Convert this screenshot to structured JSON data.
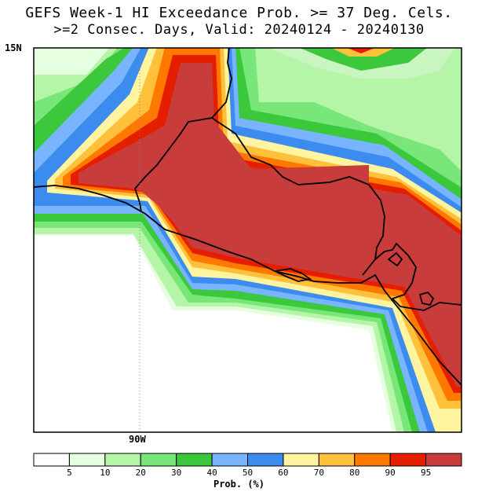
{
  "title_line1": "GEFS Week-1 HI Exceedance Prob. >= 37 Deg. Cels.",
  "title_line2": ">=2 Consec. Days, Valid: 20240124 - 20240130",
  "map": {
    "lat_label": "15N",
    "lon_label": "90W"
  },
  "legend": {
    "units": "Prob. (%)",
    "bins": [
      {
        "color": "#ffffff"
      },
      {
        "color": "#e6ffe0"
      },
      {
        "color": "#b4f5a8"
      },
      {
        "color": "#78e678"
      },
      {
        "color": "#3cc83c"
      },
      {
        "color": "#78b4ff"
      },
      {
        "color": "#3c8cf0"
      },
      {
        "color": "#fff5a0"
      },
      {
        "color": "#ffc03c"
      },
      {
        "color": "#ff7800"
      },
      {
        "color": "#e61e00"
      },
      {
        "color": "#c83c3c"
      }
    ],
    "tick_labels": [
      "5",
      "10",
      "20",
      "30",
      "40",
      "50",
      "60",
      "70",
      "80",
      "90",
      "95"
    ]
  }
}
